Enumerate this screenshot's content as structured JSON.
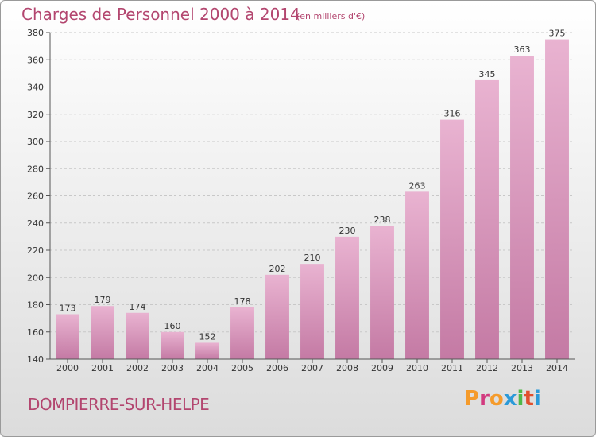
{
  "header": {
    "title": "Charges de Personnel 2000 à 2014",
    "subtitle": "(en milliers d'€)"
  },
  "footer": {
    "place": "DOMPIERRE-SUR-HELPE",
    "logo": "Proxiti"
  },
  "colors": {
    "accent": "#b3466f",
    "bar_light": "#e9b3d1",
    "bar_dark": "#c47aa4",
    "logo_letters": [
      "#f59b2b",
      "#d23a7f",
      "#f59b2b",
      "#2b9ad8",
      "#4fb848",
      "#e0502d",
      "#2b9ad8"
    ]
  },
  "chart_data": {
    "type": "bar",
    "title": "Charges de Personnel 2000 à 2014",
    "subtitle": "(en milliers d'€)",
    "xlabel": "",
    "ylabel": "",
    "categories": [
      "2000",
      "2001",
      "2002",
      "2003",
      "2004",
      "2005",
      "2006",
      "2007",
      "2008",
      "2009",
      "2010",
      "2011",
      "2012",
      "2013",
      "2014"
    ],
    "values": [
      173,
      179,
      174,
      160,
      152,
      178,
      202,
      210,
      230,
      238,
      263,
      316,
      345,
      363,
      375
    ],
    "ylim": [
      140,
      380
    ],
    "yticks": [
      140,
      160,
      180,
      200,
      220,
      240,
      260,
      280,
      300,
      320,
      340,
      360,
      380
    ],
    "grid": true,
    "legend": "none"
  }
}
